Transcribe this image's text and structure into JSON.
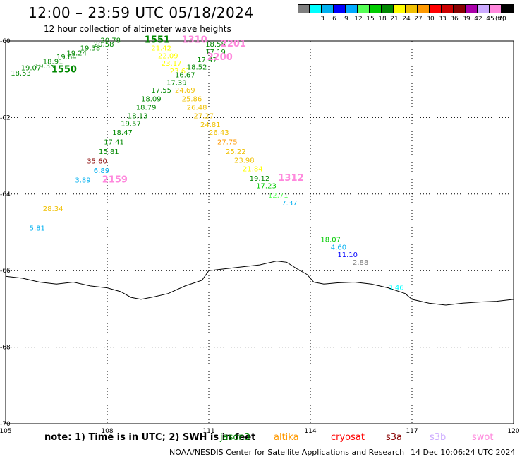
{
  "title": "12:00 – 23:59 UTC 05/18/2024",
  "subtitle": "12 hour collection of altimeter wave heights",
  "legend": {
    "unit": "(ft)",
    "items": [
      {
        "label": "",
        "color": "#7f7f7f"
      },
      {
        "label": "3",
        "color": "#00ffff"
      },
      {
        "label": "6",
        "color": "#00b0f0"
      },
      {
        "label": "9",
        "color": "#0000ff"
      },
      {
        "label": "12",
        "color": "#00aaff"
      },
      {
        "label": "15",
        "color": "#55ff55"
      },
      {
        "label": "18",
        "color": "#00cc00"
      },
      {
        "label": "21",
        "color": "#008800"
      },
      {
        "label": "24",
        "color": "#ffff00"
      },
      {
        "label": "27",
        "color": "#f0c000"
      },
      {
        "label": "30",
        "color": "#ff9900"
      },
      {
        "label": "33",
        "color": "#ff0000"
      },
      {
        "label": "36",
        "color": "#cc0000"
      },
      {
        "label": "39",
        "color": "#880000"
      },
      {
        "label": "42",
        "color": "#aa00aa"
      },
      {
        "label": "45",
        "color": "#ccaaff"
      },
      {
        "label": "70",
        "color": "#ff88dd"
      },
      {
        "label": "",
        "color": "#000000"
      }
    ]
  },
  "axes": {
    "lon_ticks": [
      "105",
      "108",
      "111",
      "114",
      "117",
      "120"
    ],
    "lat_ticks": [
      "-60",
      "-62",
      "-64",
      "-66",
      "-68",
      "-70"
    ],
    "lon_range": [
      105,
      120
    ],
    "lat_range": [
      -60,
      -70
    ]
  },
  "labels": [
    {
      "text": "18.53",
      "lon": 105.15,
      "lat": -60.9,
      "color": "#008800"
    },
    {
      "text": "19.07",
      "lon": 105.45,
      "lat": -60.77,
      "color": "#008800"
    },
    {
      "text": "19.35",
      "lon": 105.85,
      "lat": -60.72,
      "color": "#008800"
    },
    {
      "text": "18.91",
      "lon": 106.1,
      "lat": -60.6,
      "color": "#008800"
    },
    {
      "text": "19.64",
      "lon": 106.5,
      "lat": -60.48,
      "color": "#008800"
    },
    {
      "text": "19.24",
      "lon": 106.8,
      "lat": -60.38,
      "color": "#008800"
    },
    {
      "text": "19.38",
      "lon": 107.2,
      "lat": -60.25,
      "color": "#008800"
    },
    {
      "text": "20.58",
      "lon": 107.6,
      "lat": -60.15,
      "color": "#008800"
    },
    {
      "text": "20.78",
      "lon": 107.8,
      "lat": -60.05,
      "color": "#008800"
    },
    {
      "text": "1550",
      "lon": 106.35,
      "lat": -60.82,
      "color": "#008800",
      "big": true
    },
    {
      "text": "1551",
      "lon": 109.1,
      "lat": -60.05,
      "color": "#008800",
      "big": true
    },
    {
      "text": "21.42",
      "lon": 109.3,
      "lat": -60.25,
      "color": "#ffff00"
    },
    {
      "text": "22.09",
      "lon": 109.5,
      "lat": -60.45,
      "color": "#ffff00"
    },
    {
      "text": "23.17",
      "lon": 109.6,
      "lat": -60.65,
      "color": "#ffff00"
    },
    {
      "text": "23.61",
      "lon": 109.85,
      "lat": -60.85,
      "color": "#ffff00"
    },
    {
      "text": "16.67",
      "lon": 110.0,
      "lat": -60.95,
      "color": "#008800"
    },
    {
      "text": "17.39",
      "lon": 109.75,
      "lat": -61.15,
      "color": "#008800"
    },
    {
      "text": "17.55",
      "lon": 109.3,
      "lat": -61.35,
      "color": "#008800"
    },
    {
      "text": "18.09",
      "lon": 109.0,
      "lat": -61.58,
      "color": "#008800"
    },
    {
      "text": "18.79",
      "lon": 108.85,
      "lat": -61.8,
      "color": "#008800"
    },
    {
      "text": "18.13",
      "lon": 108.6,
      "lat": -62.02,
      "color": "#008800"
    },
    {
      "text": "19.57",
      "lon": 108.4,
      "lat": -62.22,
      "color": "#008800"
    },
    {
      "text": "18.47",
      "lon": 108.15,
      "lat": -62.45,
      "color": "#008800"
    },
    {
      "text": "17.41",
      "lon": 107.9,
      "lat": -62.7,
      "color": "#008800"
    },
    {
      "text": "15.81",
      "lon": 107.75,
      "lat": -62.95,
      "color": "#008800"
    },
    {
      "text": "35.60",
      "lon": 107.4,
      "lat": -63.2,
      "color": "#880000"
    },
    {
      "text": "6.89",
      "lon": 107.6,
      "lat": -63.45,
      "color": "#00b0f0"
    },
    {
      "text": "3.89",
      "lon": 107.05,
      "lat": -63.7,
      "color": "#00b0f0"
    },
    {
      "text": "2159",
      "lon": 107.85,
      "lat": -63.7,
      "color": "#ff88dd",
      "big": true
    },
    {
      "text": "1310",
      "lon": 110.2,
      "lat": -60.05,
      "color": "#ff88dd",
      "big": true
    },
    {
      "text": "18.58",
      "lon": 110.9,
      "lat": -60.15,
      "color": "#008800"
    },
    {
      "text": "17.19",
      "lon": 110.9,
      "lat": -60.35,
      "color": "#008800"
    },
    {
      "text": "17.47",
      "lon": 110.65,
      "lat": -60.55,
      "color": "#008800"
    },
    {
      "text": "18.52",
      "lon": 110.35,
      "lat": -60.75,
      "color": "#008800"
    },
    {
      "text": "24.69",
      "lon": 110.0,
      "lat": -61.35,
      "color": "#f0c000"
    },
    {
      "text": "25.86",
      "lon": 110.2,
      "lat": -61.58,
      "color": "#f0c000"
    },
    {
      "text": "26.48",
      "lon": 110.35,
      "lat": -61.8,
      "color": "#f0c000"
    },
    {
      "text": "27.27",
      "lon": 110.55,
      "lat": -62.02,
      "color": "#f0c000"
    },
    {
      "text": "24.81",
      "lon": 110.75,
      "lat": -62.25,
      "color": "#f0c000"
    },
    {
      "text": "26.43",
      "lon": 111.0,
      "lat": -62.45,
      "color": "#f0c000"
    },
    {
      "text": "27.75",
      "lon": 111.25,
      "lat": -62.7,
      "color": "#ff9900"
    },
    {
      "text": "25.22",
      "lon": 111.5,
      "lat": -62.95,
      "color": "#f0c000"
    },
    {
      "text": "23.98",
      "lon": 111.75,
      "lat": -63.18,
      "color": "#f0c000"
    },
    {
      "text": "21.84",
      "lon": 112.0,
      "lat": -63.4,
      "color": "#ffff00"
    },
    {
      "text": "19.12",
      "lon": 112.2,
      "lat": -63.65,
      "color": "#008800"
    },
    {
      "text": "17.23",
      "lon": 112.4,
      "lat": -63.85,
      "color": "#00cc00"
    },
    {
      "text": "12.71",
      "lon": 112.75,
      "lat": -64.1,
      "color": "#55ff55"
    },
    {
      "text": "7.37",
      "lon": 113.15,
      "lat": -64.3,
      "color": "#00b0f0"
    },
    {
      "text": "1312",
      "lon": 113.05,
      "lat": -63.65,
      "color": "#ff88dd",
      "big": true
    },
    {
      "text": "2201",
      "lon": 111.35,
      "lat": -60.15,
      "color": "#ff88dd",
      "big": true
    },
    {
      "text": "2200",
      "lon": 110.95,
      "lat": -60.5,
      "color": "#ff88dd",
      "big": true
    },
    {
      "text": "28.34",
      "lon": 106.1,
      "lat": -64.45,
      "color": "#f0c000"
    },
    {
      "text": "5.81",
      "lon": 105.7,
      "lat": -64.95,
      "color": "#00b0f0"
    },
    {
      "text": "18.07",
      "lon": 114.3,
      "lat": -65.25,
      "color": "#00cc00"
    },
    {
      "text": "4.60",
      "lon": 114.6,
      "lat": -65.45,
      "color": "#00b0f0"
    },
    {
      "text": "11.10",
      "lon": 114.8,
      "lat": -65.65,
      "color": "#0000ff"
    },
    {
      "text": "2.88",
      "lon": 115.25,
      "lat": -65.85,
      "color": "#7f7f7f"
    },
    {
      "text": "3.46",
      "lon": 116.3,
      "lat": -66.5,
      "color": "#00ffff"
    }
  ],
  "note": "note:  1) Time is in UTC;  2) SWH is in feet",
  "satellites": [
    {
      "name": "jason3",
      "color": "#008800"
    },
    {
      "name": "altika",
      "color": "#ff9900"
    },
    {
      "name": "cryosat",
      "color": "#ff0000"
    },
    {
      "name": "s3a",
      "color": "#880000"
    },
    {
      "name": "s3b",
      "color": "#ccaaff"
    },
    {
      "name": "swot",
      "color": "#ff88dd"
    }
  ],
  "credit": "NOAA/NESDIS Center for Satellite Applications and Research",
  "produced": "14 Dec 10:06:24 UTC 2024"
}
